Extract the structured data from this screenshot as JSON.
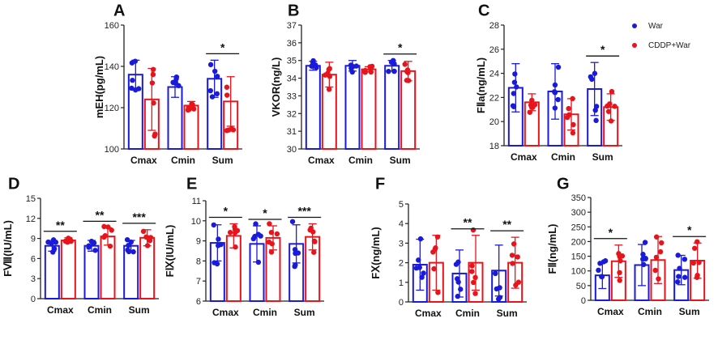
{
  "chart_data": [
    {
      "panel_label": "A",
      "type": "bar",
      "ylabel": "mEH(pg/mL)",
      "ylim": [
        100,
        160
      ],
      "yticks": [
        100,
        120,
        140,
        160
      ],
      "categories": [
        "Cmax",
        "Cmin",
        "Sum"
      ],
      "series": [
        {
          "name": "War",
          "values": [
            136,
            130,
            134
          ],
          "err": [
            7,
            5,
            9
          ]
        },
        {
          "name": "CDDP+War",
          "values": [
            124,
            121,
            123
          ],
          "err": [
            15,
            2,
            12
          ]
        }
      ],
      "significance": [
        {
          "category_index": 2,
          "label": "*"
        }
      ]
    },
    {
      "panel_label": "B",
      "type": "bar",
      "ylabel": "VKOR(ng/L)",
      "ylim": [
        30,
        37
      ],
      "yticks": [
        30,
        31,
        32,
        33,
        34,
        35,
        36,
        37
      ],
      "categories": [
        "Cmax",
        "Cmin",
        "Sum"
      ],
      "series": [
        {
          "name": "War",
          "values": [
            34.7,
            34.7,
            34.7
          ],
          "err": [
            0.25,
            0.3,
            0.3
          ]
        },
        {
          "name": "CDDP+War",
          "values": [
            34.2,
            34.5,
            34.4
          ],
          "err": [
            0.7,
            0.15,
            0.55
          ]
        }
      ],
      "significance": [
        {
          "category_index": 2,
          "label": "*"
        }
      ]
    },
    {
      "panel_label": "C",
      "type": "bar",
      "ylabel": "FⅡa(ng/mL)",
      "ylim": [
        18,
        28
      ],
      "yticks": [
        18,
        20,
        22,
        24,
        26,
        28
      ],
      "categories": [
        "Cmax",
        "Cmin",
        "Sum"
      ],
      "series": [
        {
          "name": "War",
          "values": [
            22.8,
            22.5,
            22.7
          ],
          "err": [
            2.0,
            2.3,
            2.2
          ]
        },
        {
          "name": "CDDP+War",
          "values": [
            21.6,
            20.6,
            21.2
          ],
          "err": [
            0.7,
            1.3,
            1.1
          ]
        }
      ],
      "significance": [
        {
          "category_index": 2,
          "label": "*"
        }
      ]
    },
    {
      "panel_label": "D",
      "type": "bar",
      "ylabel": "FⅧ(IU/mL)",
      "ylim": [
        0,
        15
      ],
      "yticks": [
        0,
        3,
        6,
        9,
        12,
        15
      ],
      "categories": [
        "Cmax",
        "Cmin",
        "Sum"
      ],
      "series": [
        {
          "name": "War",
          "values": [
            7.9,
            7.9,
            7.9
          ],
          "err": [
            0.8,
            0.8,
            0.8
          ]
        },
        {
          "name": "CDDP+War",
          "values": [
            8.7,
            9.3,
            9.1
          ],
          "err": [
            0.4,
            1.3,
            1.2
          ]
        }
      ],
      "significance": [
        {
          "category_index": 0,
          "label": "**"
        },
        {
          "category_index": 1,
          "label": "**"
        },
        {
          "category_index": 2,
          "label": "***"
        }
      ]
    },
    {
      "panel_label": "E",
      "type": "bar",
      "ylabel": "FⅨ(IU/mL)",
      "ylim": [
        6,
        11
      ],
      "yticks": [
        6,
        7,
        8,
        9,
        10,
        11
      ],
      "categories": [
        "Cmax",
        "Cmin",
        "Sum"
      ],
      "series": [
        {
          "name": "War",
          "values": [
            8.9,
            8.85,
            8.85
          ],
          "err": [
            0.9,
            0.9,
            0.95
          ]
        },
        {
          "name": "CDDP+War",
          "values": [
            9.25,
            9.15,
            9.2
          ],
          "err": [
            0.6,
            0.6,
            0.65
          ]
        }
      ],
      "significance": [
        {
          "category_index": 0,
          "label": "*"
        },
        {
          "category_index": 1,
          "label": "*"
        },
        {
          "category_index": 2,
          "label": "***"
        }
      ]
    },
    {
      "panel_label": "F",
      "type": "bar",
      "ylabel": "FⅩ(ng/mL)",
      "ylim": [
        0,
        5
      ],
      "yticks": [
        0,
        1,
        2,
        3,
        4,
        5
      ],
      "categories": [
        "Cmax",
        "Cmin",
        "Sum"
      ],
      "series": [
        {
          "name": "War",
          "values": [
            1.9,
            1.45,
            1.6
          ],
          "err": [
            1.3,
            1.2,
            1.3
          ]
        },
        {
          "name": "CDDP+War",
          "values": [
            2.0,
            2.0,
            2.0
          ],
          "err": [
            1.4,
            1.4,
            1.3
          ]
        }
      ],
      "significance": [
        {
          "category_index": 1,
          "label": "**"
        },
        {
          "category_index": 2,
          "label": "**"
        }
      ]
    },
    {
      "panel_label": "G",
      "type": "bar",
      "ylabel": "FⅡ(ng/mL)",
      "ylim": [
        0,
        350
      ],
      "yticks": [
        0,
        50,
        100,
        150,
        200,
        250,
        300,
        350
      ],
      "categories": [
        "Cmax",
        "Cmin",
        "Sum"
      ],
      "series": [
        {
          "name": "War",
          "values": [
            85,
            120,
            103
          ],
          "err": [
            45,
            70,
            50
          ]
        },
        {
          "name": "CDDP+War",
          "values": [
            133,
            137,
            135
          ],
          "err": [
            55,
            80,
            60
          ]
        }
      ],
      "significance": [
        {
          "category_index": 0,
          "label": "*"
        },
        {
          "category_index": 2,
          "label": "*"
        }
      ]
    }
  ],
  "legend": {
    "entries": [
      {
        "label": "War",
        "color": "#1a1adb"
      },
      {
        "label": "CDDP+War",
        "color": "#e8141c"
      }
    ]
  },
  "colors": {
    "war": "#1a1adb",
    "cddp": "#e8141c",
    "axis": "#222222"
  }
}
